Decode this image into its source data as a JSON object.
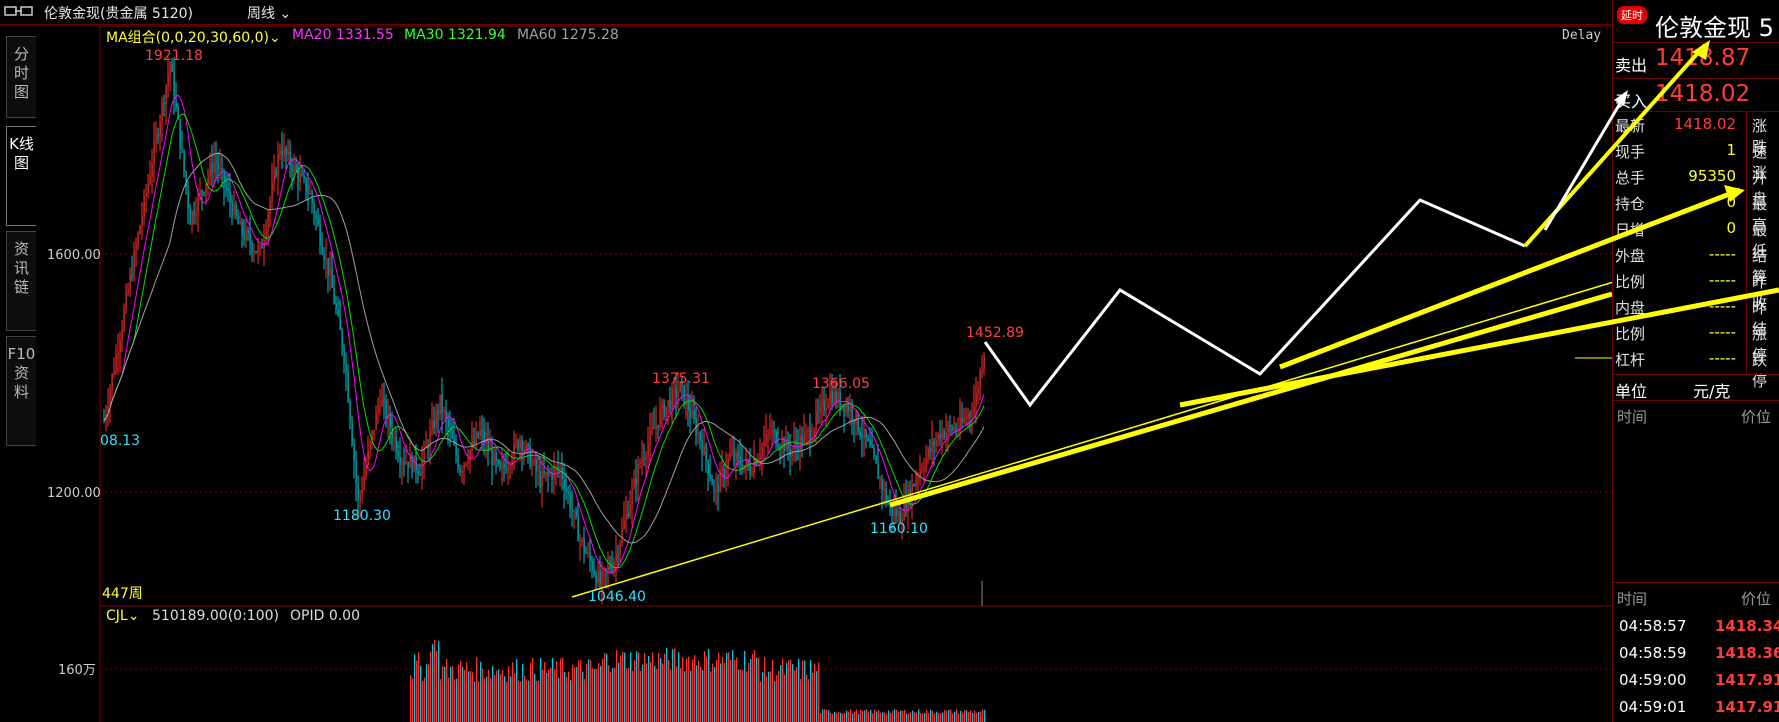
{
  "window": {
    "title": "伦敦金现(贵金属 5120)",
    "period": "周线"
  },
  "side_tabs": [
    {
      "label": "分时图"
    },
    {
      "label": "K线图"
    },
    {
      "label": "资讯链"
    },
    {
      "label": "F10资料"
    }
  ],
  "legend": {
    "ma_combo": "MA组合(0,0,20,30,60,0)",
    "ma20": "MA20 1331.55",
    "ma30": "MA30 1321.94",
    "ma60": "MA60 1275.28",
    "delay": "Delay",
    "bar_count": "447周"
  },
  "volume_legend": {
    "name": "CJL",
    "value": "510189.00(0:100)",
    "opid": "OPID 0.00",
    "axis_label": "160万"
  },
  "y_axis": {
    "ticks": [
      "1600.00",
      "1200.00"
    ]
  },
  "annotations": {
    "high": "1921.18",
    "low_left": "08.13",
    "low1": "1180.30",
    "low2": "1046.40",
    "high2": "1375.31",
    "high3": "1366.05",
    "low3": "1160.10",
    "high4": "1452.89"
  },
  "colors": {
    "up": "#ff3030",
    "down": "#00c8d8",
    "ma20": "#ff00ff",
    "ma30": "#00e000",
    "ma60": "#a0a0a0",
    "accent": "#ffff00",
    "grid": "#7a0000"
  },
  "chart_data": {
    "type": "candlestick",
    "period": "weekly",
    "y_range": [
      1000,
      1950
    ],
    "swing_points": [
      {
        "label": "1921.18",
        "price": 1921.18
      },
      {
        "label": "1180.30",
        "price": 1180.3
      },
      {
        "label": "1046.40",
        "price": 1046.4
      },
      {
        "label": "1375.31",
        "price": 1375.31
      },
      {
        "label": "1366.05",
        "price": 1366.05
      },
      {
        "label": "1160.10",
        "price": 1160.1
      },
      {
        "label": "1452.89",
        "price": 1452.89
      }
    ]
  },
  "quote_panel": {
    "badge": "延时",
    "name": "伦敦金现 5",
    "sell_label": "卖出",
    "sell": "1418.87",
    "buy_label": "买入",
    "buy": "1418.02",
    "rows": [
      {
        "label": "最新",
        "value": "1418.02",
        "color": "red",
        "right": "涨跌"
      },
      {
        "label": "现手",
        "value": "1",
        "color": "yel",
        "right": "速涨"
      },
      {
        "label": "总手",
        "value": "95350",
        "color": "yel",
        "right": "开盘"
      },
      {
        "label": "持仓",
        "value": "0",
        "color": "yel",
        "right": "最高"
      },
      {
        "label": "日增",
        "value": "0",
        "color": "yel",
        "right": "最低"
      },
      {
        "label": "外盘",
        "value": "-----",
        "color": "yel",
        "right": "结算"
      },
      {
        "label": "比例",
        "value": "-----",
        "color": "yel",
        "right": "昨收"
      },
      {
        "label": "内盘",
        "value": "-----",
        "color": "yel",
        "right": "昨结"
      },
      {
        "label": "比例",
        "value": "-----",
        "color": "yel",
        "right": "涨停"
      },
      {
        "label": "杠杆",
        "value": "-----",
        "color": "yel",
        "right": "跌停"
      }
    ],
    "unit_label": "单位",
    "unit": "元/克",
    "time_header": "时间",
    "price_header": "价位",
    "ticks": [
      {
        "time": "04:58:57",
        "price": "1418.34"
      },
      {
        "time": "04:58:59",
        "price": "1418.36"
      },
      {
        "time": "04:59:00",
        "price": "1417.91"
      },
      {
        "time": "04:59:01",
        "price": "1417.91"
      }
    ]
  }
}
